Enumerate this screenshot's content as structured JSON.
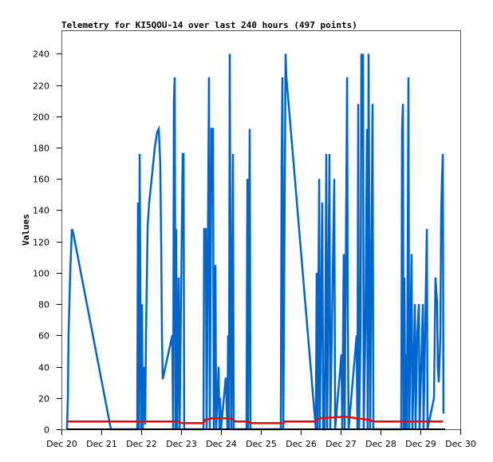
{
  "chart_data": {
    "type": "line",
    "title": "Telemetry for KI5QOU-14 over last 240 hours (497 points)",
    "xlabel": "",
    "ylabel": "Values",
    "x_units": "hours since Dec 20 00:00",
    "xlim": [
      0,
      240
    ],
    "ylim": [
      0,
      255
    ],
    "grid": false,
    "legend": "none",
    "x_ticks": [
      {
        "value": 0,
        "label": "Dec 20"
      },
      {
        "value": 24,
        "label": "Dec 21"
      },
      {
        "value": 48,
        "label": "Dec 22"
      },
      {
        "value": 72,
        "label": "Dec 23"
      },
      {
        "value": 96,
        "label": "Dec 24"
      },
      {
        "value": 120,
        "label": "Dec 25"
      },
      {
        "value": 144,
        "label": "Dec 26"
      },
      {
        "value": 168,
        "label": "Dec 27"
      },
      {
        "value": 192,
        "label": "Dec 28"
      },
      {
        "value": 216,
        "label": "Dec 29"
      },
      {
        "value": 240,
        "label": "Dec 30"
      }
    ],
    "y_ticks": [
      0,
      20,
      40,
      60,
      80,
      100,
      120,
      140,
      160,
      180,
      200,
      220,
      240
    ],
    "series": [
      {
        "name": "series-blue",
        "color": "#0066cc",
        "points": [
          [
            2.9,
            0
          ],
          [
            3.4,
            20
          ],
          [
            3.8,
            60
          ],
          [
            4.8,
            100
          ],
          [
            5.8,
            128
          ],
          [
            6.7,
            125
          ],
          [
            29.3,
            0
          ],
          [
            45.1,
            0
          ],
          [
            45.6,
            145
          ],
          [
            46.1,
            0
          ],
          [
            46.6,
            176
          ],
          [
            47,
            90
          ],
          [
            47.5,
            0
          ],
          [
            48,
            80
          ],
          [
            48.5,
            0
          ],
          [
            49,
            40
          ],
          [
            49.9,
            3
          ],
          [
            50.4,
            60
          ],
          [
            51.4,
            130
          ],
          [
            52.3,
            145
          ],
          [
            53.8,
            160
          ],
          [
            55.7,
            180
          ],
          [
            57.1,
            190
          ],
          [
            58.1,
            192
          ],
          [
            59,
            170
          ],
          [
            59.5,
            120
          ],
          [
            60,
            60
          ],
          [
            60.5,
            32
          ],
          [
            66.2,
            60
          ],
          [
            66.7,
            0
          ],
          [
            67.2,
            210
          ],
          [
            67.7,
            225
          ],
          [
            68.2,
            0
          ],
          [
            68.6,
            128
          ],
          [
            69.1,
            0
          ],
          [
            70.1,
            97
          ],
          [
            70.6,
            0
          ],
          [
            72.5,
            176
          ],
          [
            73,
            176
          ],
          [
            73.4,
            0
          ],
          [
            85,
            0
          ],
          [
            85.4,
            128
          ],
          [
            86.4,
            128
          ],
          [
            86.9,
            0
          ],
          [
            88.3,
            225
          ],
          [
            88.8,
            0
          ],
          [
            89.8,
            192
          ],
          [
            90.7,
            192
          ],
          [
            91.2,
            0
          ],
          [
            92.2,
            105
          ],
          [
            92.6,
            0
          ],
          [
            94.1,
            40
          ],
          [
            94.6,
            0
          ],
          [
            95,
            20
          ],
          [
            95.5,
            0
          ],
          [
            98.4,
            33
          ],
          [
            99.4,
            0
          ],
          [
            99.8,
            60
          ],
          [
            100.3,
            0
          ],
          [
            100.8,
            240
          ],
          [
            101.3,
            96
          ],
          [
            101.8,
            0
          ],
          [
            102.7,
            176
          ],
          [
            103.2,
            0
          ],
          [
            110.9,
            0
          ],
          [
            111.4,
            160
          ],
          [
            111.8,
            0
          ],
          [
            112.8,
            192
          ],
          [
            113.3,
            0
          ],
          [
            131.5,
            0
          ],
          [
            132,
            168
          ],
          [
            132.5,
            225
          ],
          [
            133,
            0
          ],
          [
            134.4,
            240
          ],
          [
            134.9,
            225
          ],
          [
            152.2,
            5
          ],
          [
            152.6,
            0
          ],
          [
            153.1,
            100
          ],
          [
            153.6,
            0
          ],
          [
            154.6,
            160
          ],
          [
            155,
            0
          ],
          [
            156.5,
            145
          ],
          [
            157,
            0
          ],
          [
            157.9,
            0
          ],
          [
            158.9,
            176
          ],
          [
            159.4,
            0
          ],
          [
            160.8,
            176
          ],
          [
            161.3,
            0
          ],
          [
            163.7,
            160
          ],
          [
            164.2,
            0
          ],
          [
            168,
            48
          ],
          [
            168.5,
            0
          ],
          [
            169.4,
            112
          ],
          [
            169.9,
            0
          ],
          [
            171.4,
            225
          ],
          [
            171.8,
            80
          ],
          [
            172.3,
            0
          ],
          [
            177.1,
            60
          ],
          [
            177.6,
            0
          ],
          [
            178.1,
            208
          ],
          [
            178.6,
            0
          ],
          [
            179.5,
            64
          ],
          [
            180,
            240
          ],
          [
            180.5,
            180
          ],
          [
            181,
            240
          ],
          [
            181.4,
            0
          ],
          [
            182.4,
            64
          ],
          [
            183.4,
            192
          ],
          [
            183.8,
            0
          ],
          [
            184.3,
            240
          ],
          [
            184.8,
            128
          ],
          [
            185.3,
            0
          ],
          [
            186.7,
            208
          ],
          [
            187.2,
            0
          ],
          [
            204,
            0
          ],
          [
            204.5,
            192
          ],
          [
            205,
            208
          ],
          [
            205.4,
            0
          ],
          [
            205.9,
            97
          ],
          [
            206.4,
            0
          ],
          [
            206.9,
            48
          ],
          [
            207.4,
            0
          ],
          [
            208.3,
            225
          ],
          [
            208.8,
            0
          ],
          [
            210.2,
            112
          ],
          [
            210.7,
            0
          ],
          [
            212.2,
            80
          ],
          [
            212.6,
            0
          ],
          [
            213.6,
            60
          ],
          [
            214.6,
            80
          ],
          [
            215,
            0
          ],
          [
            217,
            80
          ],
          [
            217.4,
            0
          ],
          [
            218.4,
            64
          ],
          [
            219.4,
            128
          ],
          [
            219.8,
            0
          ],
          [
            223.7,
            20
          ],
          [
            224.6,
            97
          ],
          [
            225.6,
            80
          ],
          [
            226,
            40
          ],
          [
            226.6,
            30
          ],
          [
            227.5,
            60
          ],
          [
            228,
            136
          ],
          [
            228.5,
            160
          ],
          [
            229,
            176
          ],
          [
            229.4,
            10
          ]
        ]
      },
      {
        "name": "series-red",
        "color": "#ff0000",
        "points": [
          [
            3,
            5
          ],
          [
            70,
            5
          ],
          [
            72,
            4
          ],
          [
            85,
            4
          ],
          [
            86,
            6
          ],
          [
            90,
            7
          ],
          [
            102,
            7
          ],
          [
            104,
            5
          ],
          [
            112,
            5
          ],
          [
            113,
            4
          ],
          [
            133,
            4
          ],
          [
            134,
            5
          ],
          [
            152,
            5
          ],
          [
            154,
            7
          ],
          [
            170,
            8
          ],
          [
            185,
            6
          ],
          [
            187,
            5
          ],
          [
            229,
            5
          ]
        ]
      }
    ]
  }
}
